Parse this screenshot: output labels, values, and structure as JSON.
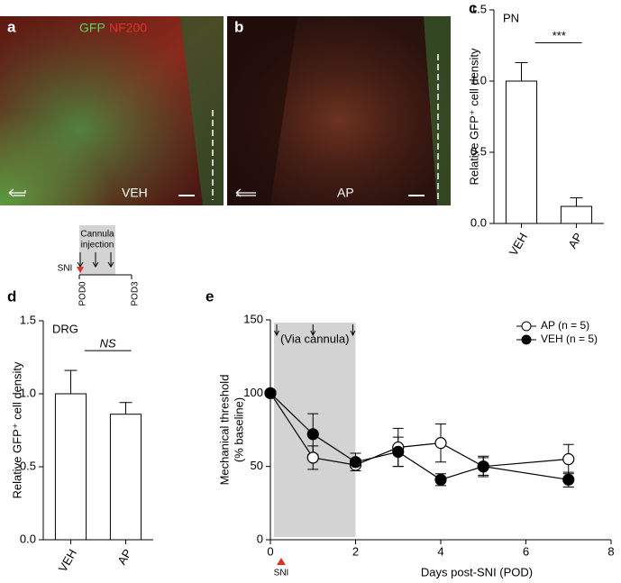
{
  "panels": {
    "a": {
      "label": "a",
      "stains": [
        "GFP",
        "NF200"
      ],
      "condition": "VEH"
    },
    "b": {
      "label": "b",
      "condition": "AP"
    },
    "schematic": {
      "title": [
        "Cannula",
        "injection"
      ],
      "event": "SNI",
      "start": "POD0",
      "end": "POD3"
    }
  },
  "chart_data": [
    {
      "type": "bar",
      "panel": "c",
      "subtitle": "PN",
      "y_label": "Relative GFP⁺ cell density",
      "categories": [
        "VEH",
        "AP"
      ],
      "values": [
        1.0,
        0.12
      ],
      "errors": [
        0.13,
        0.06
      ],
      "color": "#ffffff",
      "significance": "***",
      "ylim": [
        0,
        1.5
      ],
      "yticks": [
        {
          "value": 0,
          "label": "0.0"
        },
        0.5,
        {
          "value": 1,
          "label": "1.0"
        },
        1.5
      ]
    },
    {
      "type": "bar",
      "panel": "d",
      "subtitle": "DRG",
      "y_label": "Relative GFP⁺ cell density",
      "categories": [
        "VEH",
        "AP"
      ],
      "values": [
        1.0,
        0.86
      ],
      "errors": [
        0.16,
        0.08
      ],
      "color": "#ffffff",
      "significance": "NS",
      "ylim": [
        0,
        1.5
      ],
      "yticks": [
        {
          "value": 0,
          "label": "0.0"
        },
        0.5,
        {
          "value": 1,
          "label": "1.0"
        },
        1.5
      ]
    },
    {
      "type": "line",
      "panel": "e",
      "x_label": "Days post-SNI (POD)",
      "y_label": [
        "Mechanical threshold",
        "(% baseline)"
      ],
      "annotation": "(Via cannula)",
      "event_label": "SNI",
      "shade": [
        0,
        2
      ],
      "injection_days": [
        0,
        1,
        2
      ],
      "x": [
        0,
        1,
        2,
        3,
        4,
        5,
        7
      ],
      "series": [
        {
          "name": "AP (n = 5)",
          "color": "#000000",
          "marker_fill": "#ffffff",
          "values": [
            100,
            56,
            51,
            63,
            66,
            50,
            55
          ],
          "errors": [
            0,
            8,
            4,
            13,
            13,
            6,
            10
          ]
        },
        {
          "name": "VEH (n = 5)",
          "color": "#000000",
          "marker_fill": "#000000",
          "values": [
            100,
            72,
            53,
            60,
            41,
            50,
            41
          ],
          "errors": [
            0,
            14,
            6,
            10,
            4,
            7,
            5
          ]
        }
      ],
      "legend": "upper right",
      "xlim": [
        0,
        8
      ],
      "xticks": [
        0,
        2,
        4,
        6,
        8
      ],
      "ylim": [
        0,
        150
      ],
      "yticks": [
        0,
        50,
        100,
        150
      ]
    }
  ]
}
